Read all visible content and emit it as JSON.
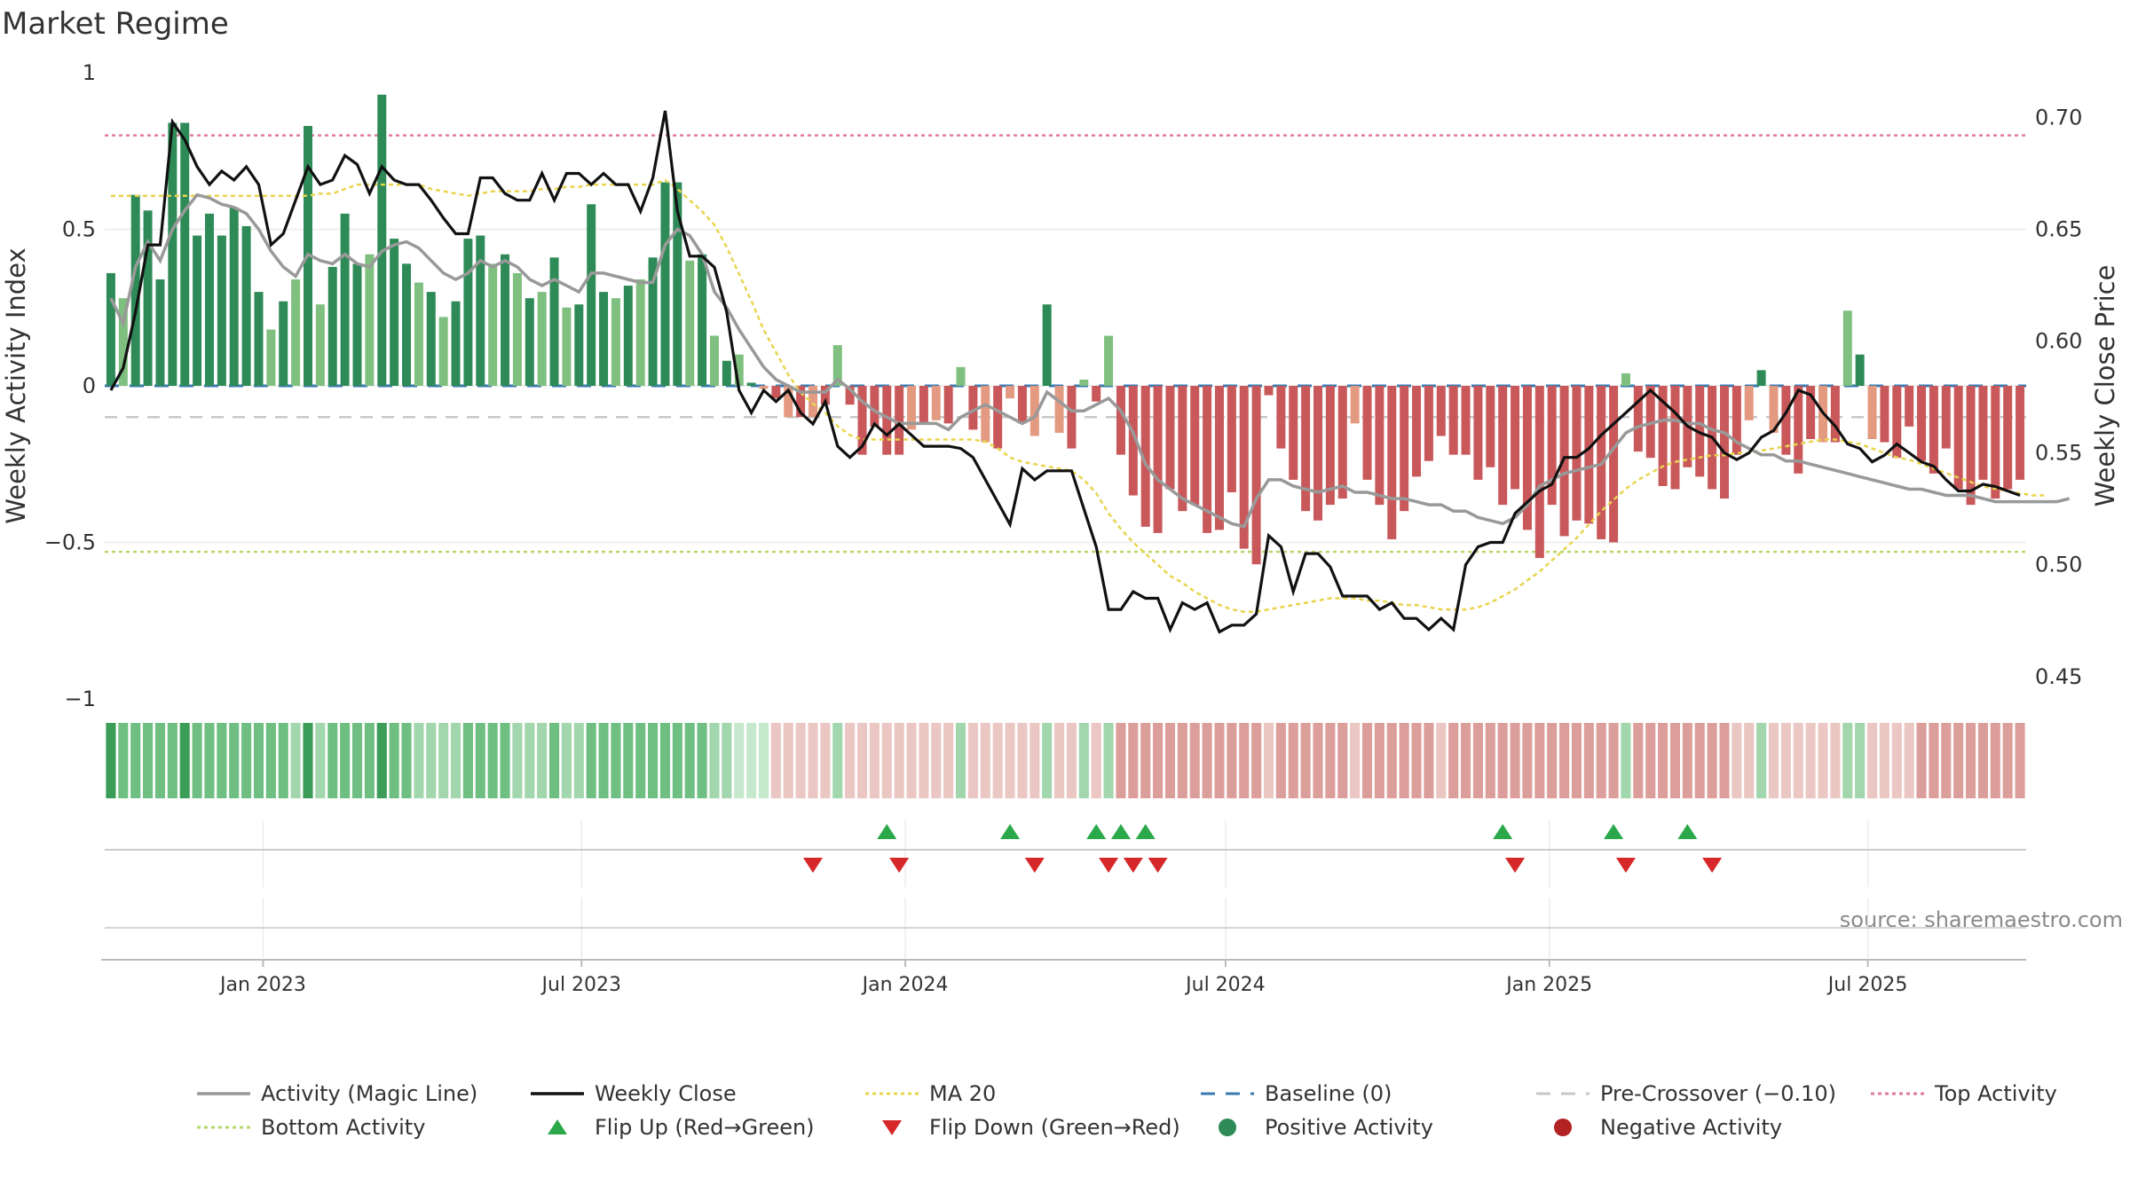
{
  "title": "Market Regime",
  "source": "source: sharemaestro.com",
  "colors": {
    "pos_dark": "#2e8b57",
    "pos_light": "#7fbf7f",
    "neg_dark": "#c9585a",
    "neg_light": "#e39a80",
    "magic": "#999999",
    "close": "#111111",
    "ma20": "#e8d44d",
    "baseline": "#3a7ab0",
    "precross": "#c8c8c8",
    "top": "#e07a9a",
    "bottom": "#b5d96b",
    "flip_up": "#2aa84a",
    "flip_down": "#d62828"
  },
  "chart_data": {
    "type": "bar",
    "x_start": "2022-10-03",
    "weeks": 156,
    "left_axis": {
      "label": "Weekly Activity Index",
      "ylim": [
        -1,
        1
      ],
      "ticks": [
        1,
        0.5,
        0,
        -0.5,
        -1
      ],
      "tick_labels": [
        "1",
        "0.5",
        "0",
        "−0.5",
        "−1"
      ]
    },
    "right_axis": {
      "label": "Weekly Close Price",
      "ylim": [
        0.44,
        0.72
      ],
      "ticks": [
        0.7,
        0.65,
        0.6,
        0.55,
        0.5,
        0.45
      ],
      "tick_labels": [
        "0.70",
        "0.65",
        "0.60",
        "0.55",
        "0.50",
        "0.45"
      ]
    },
    "x_ticks": [
      {
        "label": "Jan 2023",
        "date": "2023-01-01"
      },
      {
        "label": "Jul 2023",
        "date": "2023-07-01"
      },
      {
        "label": "Jan 2024",
        "date": "2024-01-01"
      },
      {
        "label": "Jul 2024",
        "date": "2024-07-01"
      },
      {
        "label": "Jan 2025",
        "date": "2025-01-01"
      },
      {
        "label": "Jul 2025",
        "date": "2025-07-01"
      }
    ],
    "activity": [
      0.36,
      0.28,
      0.61,
      0.56,
      0.34,
      0.84,
      0.84,
      0.48,
      0.55,
      0.48,
      0.57,
      0.51,
      0.3,
      0.18,
      0.27,
      0.34,
      0.83,
      0.26,
      0.38,
      0.55,
      0.39,
      0.42,
      0.93,
      0.47,
      0.39,
      0.33,
      0.3,
      0.22,
      0.27,
      0.47,
      0.48,
      0.39,
      0.42,
      0.36,
      0.28,
      0.3,
      0.41,
      0.25,
      0.26,
      0.58,
      0.3,
      0.28,
      0.32,
      0.34,
      0.41,
      0.65,
      0.65,
      0.4,
      0.42,
      0.16,
      0.08,
      0.1,
      0.01,
      -0.01,
      -0.04,
      -0.1,
      -0.1,
      -0.1,
      -0.06,
      0.13,
      -0.06,
      -0.22,
      -0.13,
      -0.22,
      -0.22,
      -0.14,
      -0.12,
      -0.11,
      -0.12,
      0.06,
      -0.14,
      -0.18,
      -0.2,
      -0.04,
      -0.12,
      -0.16,
      0.26,
      -0.15,
      -0.2,
      0.02,
      -0.05,
      0.16,
      -0.22,
      -0.35,
      -0.45,
      -0.47,
      -0.33,
      -0.4,
      -0.38,
      -0.47,
      -0.46,
      -0.34,
      -0.52,
      -0.57,
      -0.03,
      -0.2,
      -0.3,
      -0.4,
      -0.43,
      -0.38,
      -0.36,
      -0.12,
      -0.3,
      -0.38,
      -0.49,
      -0.4,
      -0.29,
      -0.24,
      -0.16,
      -0.22,
      -0.22,
      -0.3,
      -0.26,
      -0.38,
      -0.33,
      -0.46,
      -0.55,
      -0.38,
      -0.48,
      -0.43,
      -0.44,
      -0.49,
      -0.5,
      0.04,
      -0.21,
      -0.23,
      -0.32,
      -0.33,
      -0.26,
      -0.29,
      -0.33,
      -0.36,
      -0.22,
      -0.11,
      0.05,
      -0.15,
      -0.22,
      -0.28,
      -0.17,
      -0.18,
      -0.18,
      0.24,
      0.1,
      -0.17,
      -0.18,
      -0.23,
      -0.13,
      -0.24,
      -0.28,
      -0.2,
      -0.33,
      -0.38,
      -0.3,
      -0.36,
      -0.33,
      -0.3
    ],
    "magic_line": [
      0.28,
      0.2,
      0.38,
      0.46,
      0.4,
      0.5,
      0.56,
      0.61,
      0.6,
      0.58,
      0.57,
      0.55,
      0.5,
      0.43,
      0.38,
      0.35,
      0.42,
      0.4,
      0.39,
      0.42,
      0.39,
      0.38,
      0.43,
      0.45,
      0.46,
      0.44,
      0.4,
      0.36,
      0.34,
      0.36,
      0.4,
      0.38,
      0.4,
      0.38,
      0.34,
      0.32,
      0.34,
      0.32,
      0.3,
      0.36,
      0.36,
      0.35,
      0.34,
      0.33,
      0.33,
      0.45,
      0.5,
      0.48,
      0.42,
      0.3,
      0.25,
      0.18,
      0.12,
      0.06,
      0.02,
      0,
      -0.02,
      -0.02,
      -0.02,
      0.02,
      -0.01,
      -0.05,
      -0.08,
      -0.1,
      -0.12,
      -0.12,
      -0.12,
      -0.12,
      -0.14,
      -0.1,
      -0.08,
      -0.06,
      -0.08,
      -0.1,
      -0.12,
      -0.1,
      -0.02,
      -0.05,
      -0.08,
      -0.08,
      -0.06,
      -0.04,
      -0.08,
      -0.15,
      -0.25,
      -0.3,
      -0.33,
      -0.36,
      -0.38,
      -0.4,
      -0.42,
      -0.44,
      -0.45,
      -0.36,
      -0.3,
      -0.3,
      -0.32,
      -0.33,
      -0.34,
      -0.33,
      -0.32,
      -0.34,
      -0.34,
      -0.35,
      -0.36,
      -0.36,
      -0.37,
      -0.38,
      -0.38,
      -0.4,
      -0.4,
      -0.42,
      -0.43,
      -0.44,
      -0.42,
      -0.38,
      -0.32,
      -0.3,
      -0.28,
      -0.27,
      -0.26,
      -0.25,
      -0.2,
      -0.15,
      -0.13,
      -0.12,
      -0.11,
      -0.11,
      -0.12,
      -0.12,
      -0.14,
      -0.15,
      -0.18,
      -0.2,
      -0.22,
      -0.22,
      -0.24,
      -0.24,
      -0.25,
      -0.26,
      -0.27,
      -0.28,
      -0.29,
      -0.3,
      -0.31,
      -0.32,
      -0.33,
      -0.33,
      -0.34,
      -0.35,
      -0.35,
      -0.35,
      -0.36,
      -0.37,
      -0.37,
      -0.37,
      -0.37,
      -0.37,
      -0.37,
      -0.36
    ],
    "weekly_close": [
      0.578,
      0.588,
      0.613,
      0.643,
      0.643,
      0.698,
      0.69,
      0.678,
      0.67,
      0.676,
      0.672,
      0.678,
      0.67,
      0.643,
      0.648,
      0.663,
      0.678,
      0.67,
      0.672,
      0.683,
      0.679,
      0.666,
      0.678,
      0.672,
      0.67,
      0.67,
      0.663,
      0.655,
      0.648,
      0.648,
      0.673,
      0.673,
      0.666,
      0.663,
      0.663,
      0.675,
      0.663,
      0.675,
      0.675,
      0.67,
      0.675,
      0.67,
      0.67,
      0.658,
      0.673,
      0.703,
      0.658,
      0.638,
      0.638,
      0.633,
      0.613,
      0.578,
      0.568,
      0.578,
      0.573,
      0.578,
      0.568,
      0.563,
      0.573,
      0.553,
      0.548,
      0.553,
      0.563,
      0.558,
      0.563,
      0.558,
      0.553,
      0.553,
      0.553,
      0.552,
      0.548,
      0.538,
      0.528,
      0.518,
      0.543,
      0.538,
      0.542,
      0.542,
      0.542,
      0.525,
      0.508,
      0.48,
      0.48,
      0.488,
      0.485,
      0.485,
      0.471,
      0.483,
      0.48,
      0.483,
      0.47,
      0.473,
      0.473,
      0.478,
      0.513,
      0.508,
      0.488,
      0.505,
      0.505,
      0.499,
      0.486,
      0.486,
      0.486,
      0.48,
      0.483,
      0.476,
      0.476,
      0.471,
      0.476,
      0.471,
      0.5,
      0.508,
      0.51,
      0.51,
      0.523,
      0.528,
      0.533,
      0.536,
      0.548,
      0.548,
      0.552,
      0.558,
      0.563,
      0.568,
      0.573,
      0.578,
      0.573,
      0.568,
      0.562,
      0.559,
      0.557,
      0.55,
      0.547,
      0.55,
      0.557,
      0.56,
      0.568,
      0.578,
      0.576,
      0.568,
      0.562,
      0.554,
      0.552,
      0.546,
      0.549,
      0.554,
      0.55,
      0.546,
      0.544,
      0.538,
      0.533,
      0.533,
      0.536,
      0.535,
      0.533,
      0.531
    ],
    "ma20": [
      0.665,
      0.665,
      0.665,
      0.665,
      0.665,
      0.665,
      0.665,
      0.665,
      0.665,
      0.665,
      0.665,
      0.665,
      0.665,
      0.665,
      0.665,
      0.665,
      0.665,
      0.666,
      0.666,
      0.668,
      0.67,
      0.67,
      0.67,
      0.67,
      0.67,
      0.67,
      0.668,
      0.667,
      0.666,
      0.665,
      0.666,
      0.667,
      0.667,
      0.667,
      0.667,
      0.668,
      0.668,
      0.669,
      0.669,
      0.67,
      0.67,
      0.67,
      0.67,
      0.67,
      0.67,
      0.672,
      0.668,
      0.663,
      0.658,
      0.652,
      0.642,
      0.63,
      0.618,
      0.605,
      0.595,
      0.585,
      0.577,
      0.572,
      0.568,
      0.562,
      0.558,
      0.556,
      0.556,
      0.556,
      0.556,
      0.556,
      0.556,
      0.556,
      0.556,
      0.556,
      0.556,
      0.555,
      0.552,
      0.548,
      0.546,
      0.545,
      0.544,
      0.543,
      0.542,
      0.538,
      0.532,
      0.523,
      0.516,
      0.51,
      0.505,
      0.5,
      0.495,
      0.492,
      0.488,
      0.485,
      0.482,
      0.48,
      0.479,
      0.479,
      0.48,
      0.481,
      0.482,
      0.483,
      0.484,
      0.485,
      0.485,
      0.485,
      0.484,
      0.484,
      0.483,
      0.482,
      0.482,
      0.481,
      0.48,
      0.48,
      0.48,
      0.481,
      0.483,
      0.486,
      0.489,
      0.493,
      0.497,
      0.502,
      0.507,
      0.512,
      0.518,
      0.524,
      0.529,
      0.534,
      0.538,
      0.541,
      0.544,
      0.546,
      0.547,
      0.548,
      0.549,
      0.549,
      0.55,
      0.55,
      0.551,
      0.552,
      0.553,
      0.554,
      0.555,
      0.556,
      0.556,
      0.555,
      0.554,
      0.552,
      0.55,
      0.548,
      0.547,
      0.545,
      0.543,
      0.541,
      0.539,
      0.537,
      0.535,
      0.534,
      0.533,
      0.532,
      0.531,
      0.531
    ],
    "regime_strip": [
      3,
      2,
      2,
      2,
      2,
      2,
      3,
      2,
      2,
      2,
      2,
      2,
      2,
      2,
      2,
      1,
      3,
      1,
      2,
      2,
      2,
      2,
      3,
      2,
      2,
      1,
      1,
      1,
      1,
      2,
      2,
      2,
      2,
      1,
      1,
      1,
      2,
      1,
      1,
      2,
      2,
      2,
      2,
      2,
      2,
      2,
      2,
      2,
      2,
      1,
      1,
      0,
      0,
      0,
      -1,
      -1,
      -1,
      -1,
      -1,
      1,
      -1,
      -1,
      -1,
      -1,
      -1,
      -1,
      -1,
      -1,
      -1,
      1,
      -1,
      -1,
      -1,
      -1,
      -1,
      -1,
      1,
      -1,
      -1,
      1,
      -1,
      1,
      -2,
      -2,
      -2,
      -2,
      -2,
      -2,
      -2,
      -2,
      -2,
      -2,
      -2,
      -2,
      -1,
      -2,
      -2,
      -2,
      -2,
      -2,
      -2,
      -1,
      -2,
      -2,
      -2,
      -2,
      -2,
      -2,
      -1,
      -2,
      -2,
      -2,
      -2,
      -2,
      -2,
      -2,
      -2,
      -2,
      -2,
      -2,
      -2,
      -2,
      -2,
      1,
      -2,
      -2,
      -2,
      -2,
      -2,
      -2,
      -2,
      -2,
      -1,
      -1,
      1,
      -1,
      -1,
      -1,
      -1,
      -1,
      -1,
      1,
      1,
      -1,
      -1,
      -1,
      -1,
      -2,
      -2,
      -2,
      -2,
      -2,
      -2,
      -2,
      -2,
      -2
    ],
    "flip_up_weeks": [
      63,
      73,
      80,
      82,
      84,
      113,
      122,
      128
    ],
    "flip_down_weeks": [
      57,
      64,
      75,
      81,
      83,
      85,
      114,
      123,
      130
    ],
    "reference_lines": {
      "baseline": 0,
      "pre_crossover": -0.1,
      "top_activity": 0.8,
      "bottom_activity": -0.53
    },
    "legend": [
      {
        "label": "Activity (Magic Line)",
        "kind": "line",
        "color_key": "magic"
      },
      {
        "label": "Weekly Close",
        "kind": "line",
        "color_key": "close"
      },
      {
        "label": "MA 20",
        "kind": "dotted",
        "color_key": "ma20"
      },
      {
        "label": "Baseline (0)",
        "kind": "dashed",
        "color_key": "baseline"
      },
      {
        "label": "Pre-Crossover (−0.10)",
        "kind": "dashed",
        "color_key": "precross"
      },
      {
        "label": "Top Activity",
        "kind": "dotted",
        "color_key": "top"
      },
      {
        "label": "Bottom Activity",
        "kind": "dotted",
        "color_key": "bottom"
      },
      {
        "label": "Flip Up (Red→Green)",
        "kind": "tri-up",
        "color_key": "flip_up"
      },
      {
        "label": "Flip Down (Green→Red)",
        "kind": "tri-down",
        "color_key": "flip_down"
      },
      {
        "label": "Positive Activity",
        "kind": "circle",
        "color_key": "pos_dark"
      },
      {
        "label": "Negative Activity",
        "kind": "circle",
        "color_key": "neg_deep"
      }
    ],
    "legend_placement": "bottom"
  }
}
